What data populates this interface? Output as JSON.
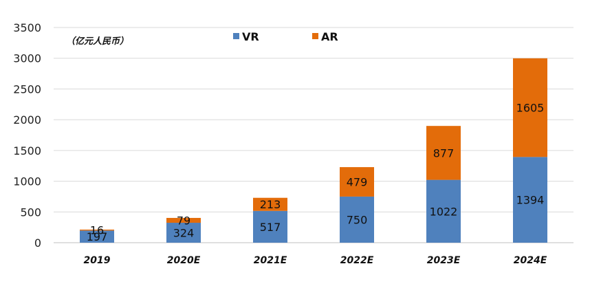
{
  "chart_data": {
    "type": "bar",
    "stacked": true,
    "unit_label": "（亿元人民币）",
    "categories": [
      "2019",
      "2020E",
      "2021E",
      "2022E",
      "2023E",
      "2024E"
    ],
    "series": [
      {
        "name": "VR",
        "color": "#4f81bd",
        "values": [
          197,
          324,
          517,
          750,
          1022,
          1394
        ]
      },
      {
        "name": "AR",
        "color": "#e36c0a",
        "values": [
          16,
          79,
          213,
          479,
          877,
          1605
        ]
      }
    ],
    "ylim": [
      0,
      3500
    ],
    "yticks": [
      0,
      500,
      1000,
      1500,
      2000,
      2500,
      3000,
      3500
    ],
    "grid": true,
    "legend_position": "top-center"
  }
}
